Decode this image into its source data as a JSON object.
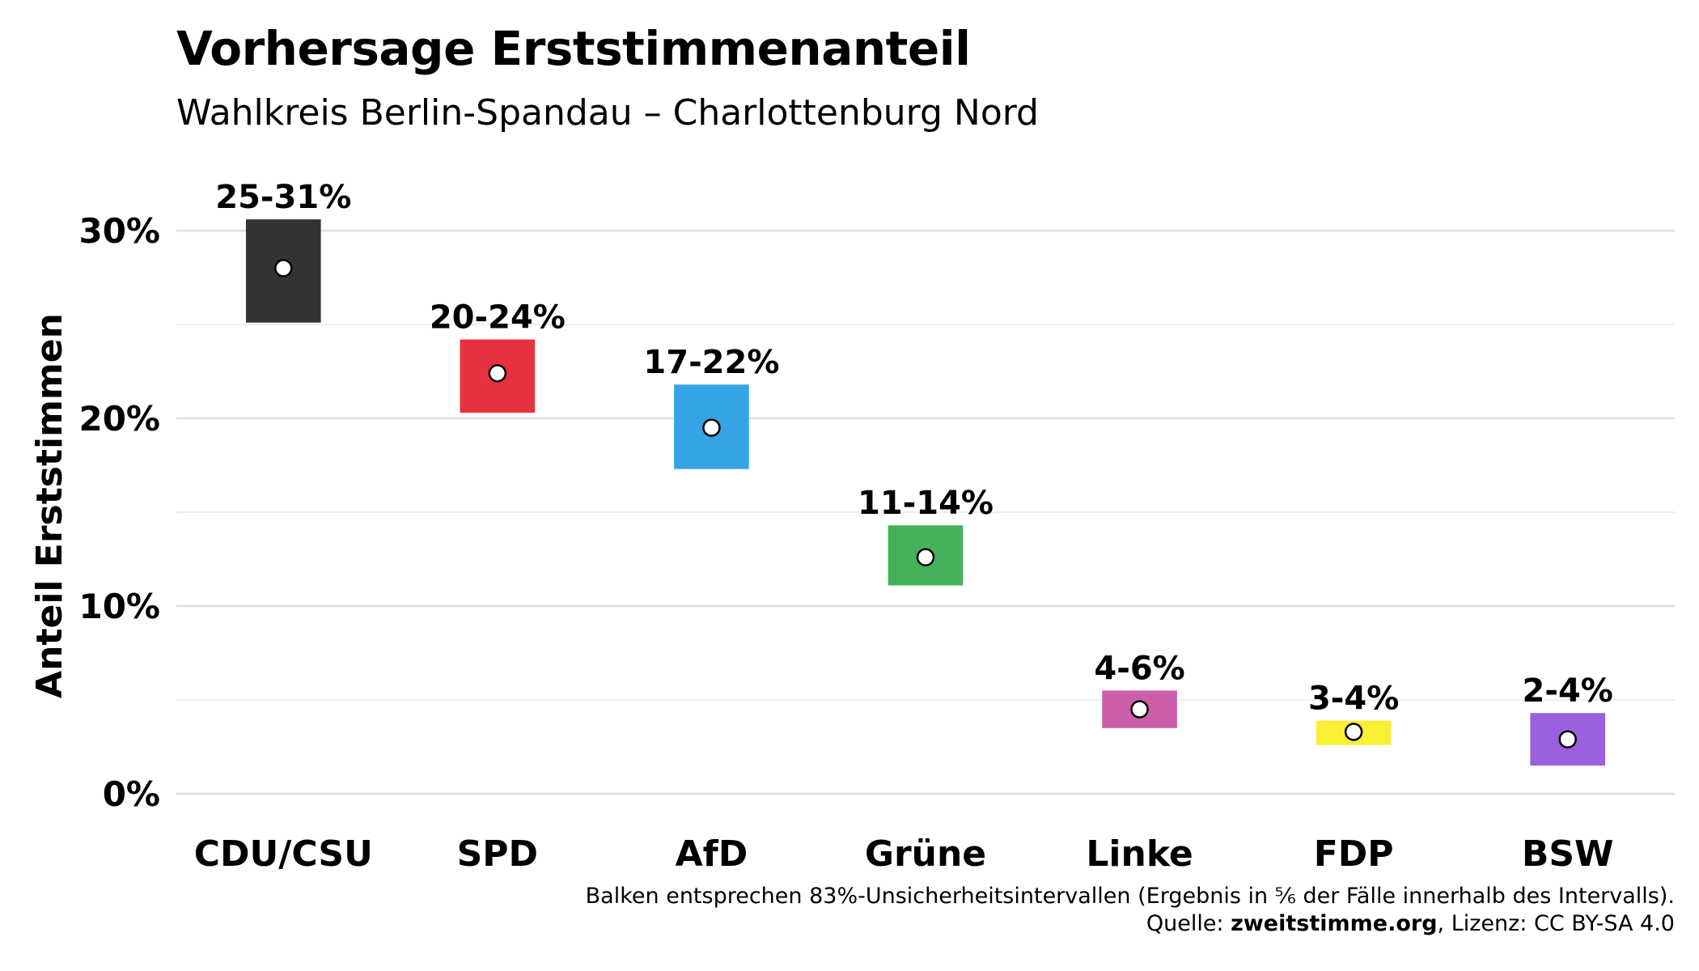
{
  "title": "Vorhersage Erststimmenanteil",
  "subtitle": "Wahlkreis Berlin-Spandau – Charlottenburg Nord",
  "footer": {
    "note": "Balken entsprechen 83%-Unsicherheitsintervallen (Ergebnis in ⅚ der Fälle innerhalb des Intervalls).",
    "source_prefix": "Quelle: ",
    "source_site": "zweitstimme.org",
    "source_suffix": ", Lizenz: CC BY-SA 4.0"
  },
  "chart_data": {
    "type": "interval",
    "ylabel": "Anteil Erststimmen",
    "ylim": [
      -1.5,
      33
    ],
    "yticks": [
      0,
      10,
      20,
      30
    ],
    "ytick_labels": [
      "0%",
      "10%",
      "20%",
      "30%"
    ],
    "minor_gridlines": [
      5,
      15,
      25
    ],
    "grid": true,
    "categories": [
      "CDU/CSU",
      "SPD",
      "AfD",
      "Grüne",
      "Linke",
      "FDP",
      "BSW"
    ],
    "low": [
      25.1,
      20.3,
      17.3,
      11.1,
      3.5,
      2.6,
      1.5
    ],
    "high": [
      30.6,
      24.2,
      21.8,
      14.3,
      5.5,
      3.9,
      4.3
    ],
    "estimate": [
      28.0,
      22.4,
      19.5,
      12.6,
      4.5,
      3.3,
      2.9
    ],
    "labels": [
      "25-31%",
      "20-24%",
      "17-22%",
      "11-14%",
      "4-6%",
      "3-4%",
      "2-4%"
    ],
    "colors": [
      "#333333",
      "#e8313f",
      "#35a4e5",
      "#44b15a",
      "#cd5ea9",
      "#fcee35",
      "#9b5fe0"
    ]
  }
}
